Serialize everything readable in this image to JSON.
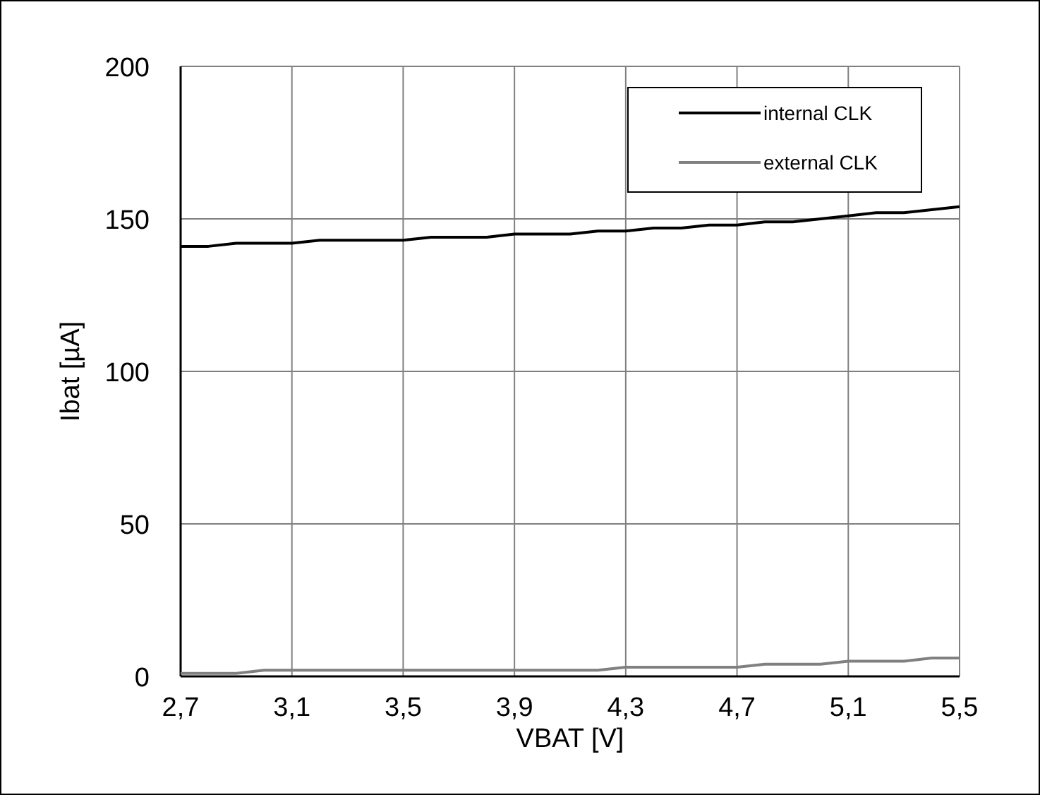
{
  "chart_data": {
    "type": "line",
    "xlabel": "VBAT [V]",
    "ylabel": "Ibat [µA]",
    "x": [
      2.7,
      2.8,
      2.9,
      3.0,
      3.1,
      3.2,
      3.3,
      3.4,
      3.5,
      3.6,
      3.7,
      3.8,
      3.9,
      4.0,
      4.1,
      4.2,
      4.3,
      4.4,
      4.5,
      4.6,
      4.7,
      4.8,
      4.9,
      5.0,
      5.1,
      5.2,
      5.3,
      5.4,
      5.5
    ],
    "series": [
      {
        "name": "internal CLK",
        "color": "#000000",
        "values": [
          141,
          141,
          142,
          142,
          142,
          143,
          143,
          143,
          143,
          144,
          144,
          144,
          145,
          145,
          145,
          146,
          146,
          147,
          147,
          148,
          148,
          149,
          149,
          150,
          151,
          152,
          152,
          153,
          154
        ]
      },
      {
        "name": "external CLK",
        "color": "#808080",
        "values": [
          1,
          1,
          1,
          2,
          2,
          2,
          2,
          2,
          2,
          2,
          2,
          2,
          2,
          2,
          2,
          2,
          3,
          3,
          3,
          3,
          3,
          4,
          4,
          4,
          5,
          5,
          5,
          6,
          6
        ]
      }
    ],
    "xlim": [
      2.7,
      5.5
    ],
    "xticks": [
      {
        "value": 2.7,
        "label": "2,7"
      },
      {
        "value": 3.1,
        "label": "3,1"
      },
      {
        "value": 3.5,
        "label": "3,5"
      },
      {
        "value": 3.9,
        "label": "3,9"
      },
      {
        "value": 4.3,
        "label": "4,3"
      },
      {
        "value": 4.7,
        "label": "4,7"
      },
      {
        "value": 5.1,
        "label": "5,1"
      },
      {
        "value": 5.5,
        "label": "5,5"
      }
    ],
    "ylim": [
      0,
      200
    ],
    "yticks": [
      0,
      50,
      100,
      150,
      200
    ],
    "grid": true,
    "legend": "top right",
    "marker": "none",
    "line_style": "solid"
  }
}
